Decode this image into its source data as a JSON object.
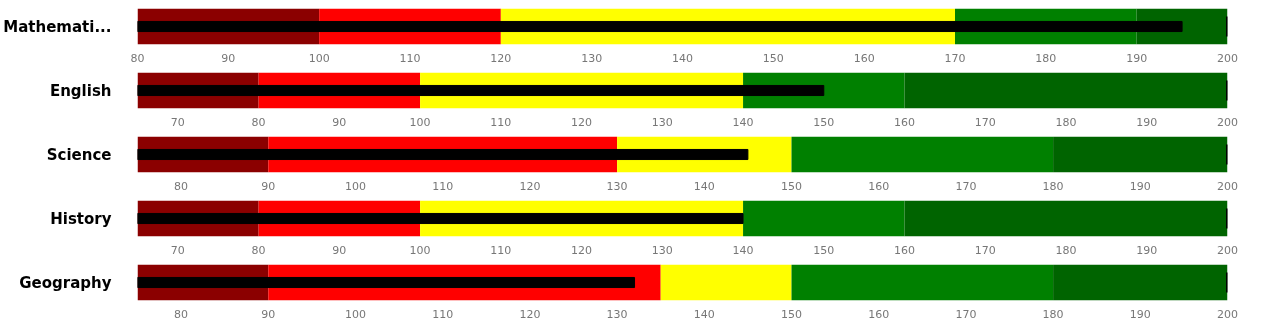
{
  "chart_data": [
    {
      "type": "bar",
      "orientation": "horizontal",
      "categories": [
        "Mathemati..."
      ],
      "values": [
        195
      ],
      "color": "#000000",
      "xlim": [
        80,
        200
      ],
      "xticks": [
        80,
        90,
        100,
        110,
        120,
        130,
        140,
        150,
        160,
        170,
        180,
        190,
        200
      ],
      "grid": false,
      "bands": [
        {
          "axis": "x",
          "from": 80,
          "to": 100,
          "color": "#8b0000"
        },
        {
          "axis": "x",
          "from": 100,
          "to": 120,
          "color": "#ff0000"
        },
        {
          "axis": "x",
          "from": 120,
          "to": 170,
          "color": "#ffff00"
        },
        {
          "axis": "x",
          "from": 170,
          "to": 190,
          "color": "#008000"
        },
        {
          "axis": "x",
          "from": 190,
          "to": 200,
          "color": "#006400"
        }
      ],
      "ref_lines": [
        {
          "axis": "x",
          "value": 200,
          "color": "#000000"
        }
      ]
    },
    {
      "type": "bar",
      "orientation": "horizontal",
      "categories": [
        "English"
      ],
      "values": [
        150
      ],
      "color": "#000000",
      "xlim": [
        65,
        200
      ],
      "xticks": [
        70,
        80,
        90,
        100,
        110,
        120,
        130,
        140,
        150,
        160,
        170,
        180,
        190,
        200
      ],
      "grid": false,
      "bands": [
        {
          "axis": "x",
          "from": 65,
          "to": 80,
          "color": "#8b0000"
        },
        {
          "axis": "x",
          "from": 80,
          "to": 100,
          "color": "#ff0000"
        },
        {
          "axis": "x",
          "from": 100,
          "to": 140,
          "color": "#ffff00"
        },
        {
          "axis": "x",
          "from": 140,
          "to": 160,
          "color": "#008000"
        },
        {
          "axis": "x",
          "from": 160,
          "to": 200,
          "color": "#006400"
        }
      ],
      "ref_lines": [
        {
          "axis": "x",
          "value": 200,
          "color": "#000000"
        }
      ]
    },
    {
      "type": "bar",
      "orientation": "horizontal",
      "categories": [
        "Science"
      ],
      "values": [
        145
      ],
      "color": "#000000",
      "xlim": [
        75,
        200
      ],
      "xticks": [
        80,
        90,
        100,
        110,
        120,
        130,
        140,
        150,
        160,
        170,
        180,
        190,
        200
      ],
      "grid": false,
      "bands": [
        {
          "axis": "x",
          "from": 75,
          "to": 90,
          "color": "#8b0000"
        },
        {
          "axis": "x",
          "from": 90,
          "to": 130,
          "color": "#ff0000"
        },
        {
          "axis": "x",
          "from": 130,
          "to": 150,
          "color": "#ffff00"
        },
        {
          "axis": "x",
          "from": 150,
          "to": 180,
          "color": "#008000"
        },
        {
          "axis": "x",
          "from": 180,
          "to": 200,
          "color": "#006400"
        }
      ],
      "ref_lines": [
        {
          "axis": "x",
          "value": 200,
          "color": "#000000"
        }
      ]
    },
    {
      "type": "bar",
      "orientation": "horizontal",
      "categories": [
        "History"
      ],
      "values": [
        140
      ],
      "color": "#000000",
      "xlim": [
        65,
        200
      ],
      "xticks": [
        70,
        80,
        90,
        100,
        110,
        120,
        130,
        140,
        150,
        160,
        170,
        180,
        190,
        200
      ],
      "grid": false,
      "bands": [
        {
          "axis": "x",
          "from": 65,
          "to": 80,
          "color": "#8b0000"
        },
        {
          "axis": "x",
          "from": 80,
          "to": 100,
          "color": "#ff0000"
        },
        {
          "axis": "x",
          "from": 100,
          "to": 140,
          "color": "#ffff00"
        },
        {
          "axis": "x",
          "from": 140,
          "to": 160,
          "color": "#008000"
        },
        {
          "axis": "x",
          "from": 160,
          "to": 200,
          "color": "#006400"
        }
      ],
      "ref_lines": [
        {
          "axis": "x",
          "value": 200,
          "color": "#000000"
        }
      ]
    },
    {
      "type": "bar",
      "orientation": "horizontal",
      "categories": [
        "Geography"
      ],
      "values": [
        132
      ],
      "color": "#000000",
      "xlim": [
        75,
        200
      ],
      "xticks": [
        80,
        90,
        100,
        110,
        120,
        130,
        140,
        150,
        160,
        170,
        180,
        190,
        200
      ],
      "grid": false,
      "bands": [
        {
          "axis": "x",
          "from": 75,
          "to": 90,
          "color": "#8b0000"
        },
        {
          "axis": "x",
          "from": 90,
          "to": 135,
          "color": "#ff0000"
        },
        {
          "axis": "x",
          "from": 135,
          "to": 150,
          "color": "#ffff00"
        },
        {
          "axis": "x",
          "from": 150,
          "to": 180,
          "color": "#008000"
        },
        {
          "axis": "x",
          "from": 180,
          "to": 200,
          "color": "#006400"
        }
      ],
      "ref_lines": [
        {
          "axis": "x",
          "value": 200,
          "color": "#000000"
        }
      ]
    }
  ]
}
